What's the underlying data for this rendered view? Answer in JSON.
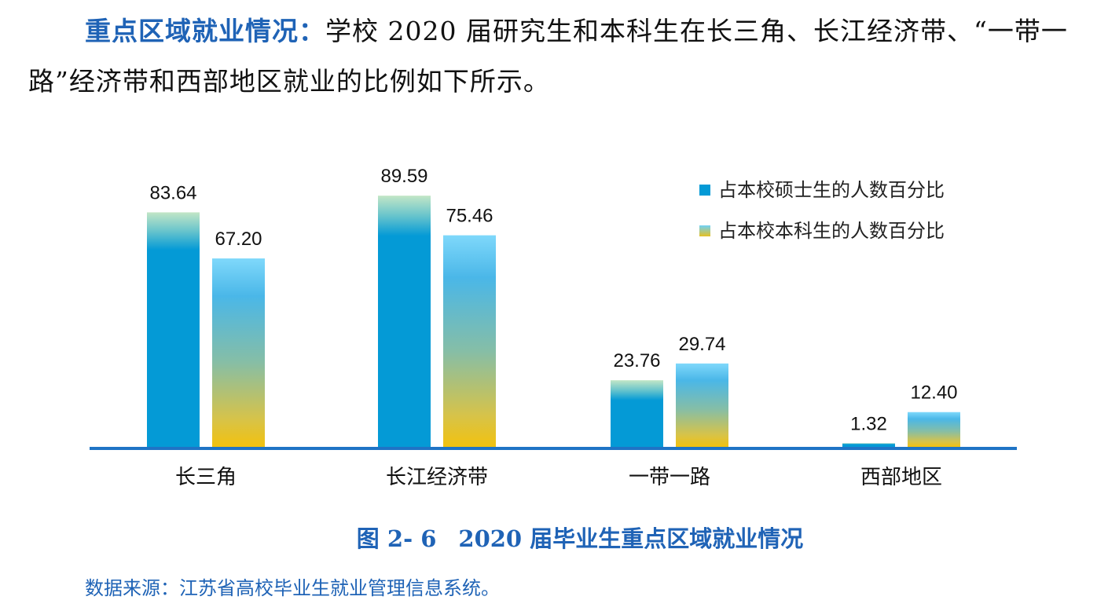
{
  "intro": {
    "lead": "重点区域就业情况：",
    "text": "学校 2020 届研究生和本科生在长三角、长江经济带、“一带一路”经济带和西部地区就业的比例如下所示。"
  },
  "chart_data": {
    "type": "bar",
    "categories": [
      "长三角",
      "长江经济带",
      "一带一路",
      "西部地区"
    ],
    "series": [
      {
        "name": "占本校硕士生的人数百分比",
        "values": [
          83.64,
          89.59,
          23.76,
          1.32
        ],
        "labels": [
          "83.64",
          "89.59",
          "23.76",
          "1.32"
        ]
      },
      {
        "name": "占本校本科生的人数百分比",
        "values": [
          67.2,
          75.46,
          29.74,
          12.4
        ],
        "labels": [
          "67.20",
          "75.46",
          "29.74",
          "12.40"
        ]
      }
    ],
    "ylim": [
      0,
      100
    ],
    "grid": false,
    "legend": "top-right",
    "colors": {
      "series1": "#049ad6",
      "series2_top": "#7fd8fb",
      "series2_mid": "#4ab7e8",
      "series2_bottom": "#f2c20f",
      "axis": "#1f74c5"
    }
  },
  "caption": {
    "number": "图 2- 6",
    "title": "2020 届毕业生重点区域就业情况"
  },
  "source": "数据来源：江苏省高校毕业生就业管理信息系统。"
}
